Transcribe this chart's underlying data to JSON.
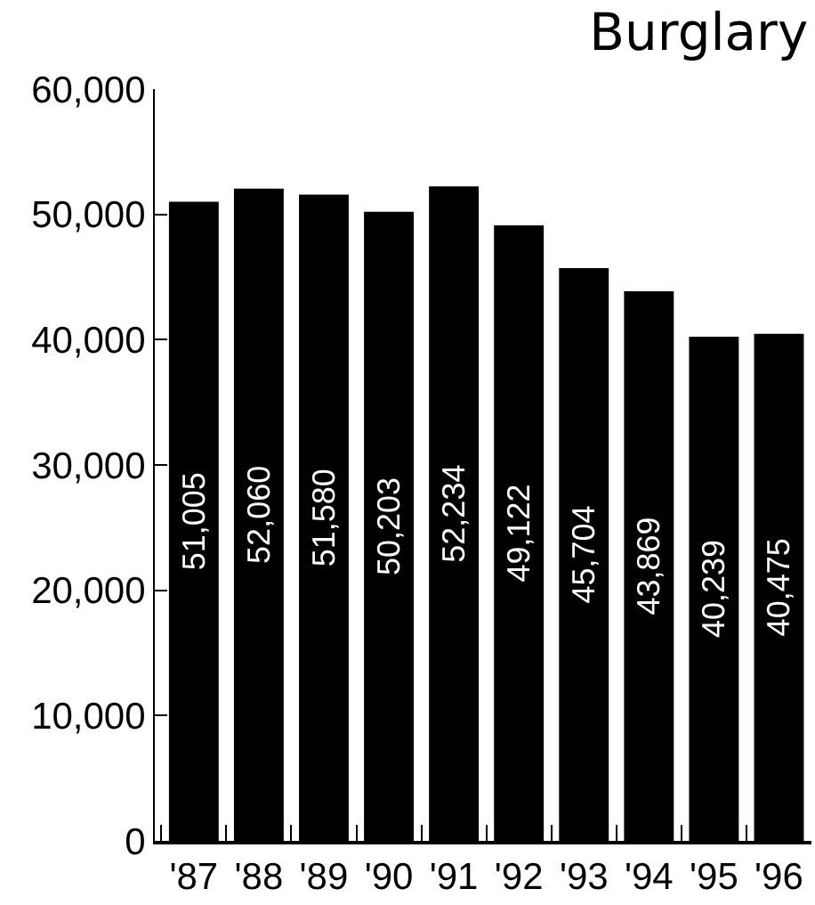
{
  "chart_data": {
    "type": "bar",
    "title": "Burglary",
    "categories": [
      "'87",
      "'88",
      "'89",
      "'90",
      "'91",
      "'92",
      "'93",
      "'94",
      "'95",
      "'96"
    ],
    "values": [
      51005,
      52060,
      51580,
      50203,
      52234,
      49122,
      45704,
      43869,
      40239,
      40475
    ],
    "value_labels": [
      "51,005",
      "52,060",
      "51,580",
      "50,203",
      "52,234",
      "49,122",
      "45,704",
      "43,869",
      "40,239",
      "40,475"
    ],
    "color": "#000000",
    "ylim": [
      0,
      60000
    ],
    "yticks": [
      0,
      {
        "value": 10000,
        "label": "10,000"
      },
      {
        "value": 20000,
        "label": "20,000"
      },
      {
        "value": 30000,
        "label": "30,000"
      },
      {
        "value": 40000,
        "label": "40,000"
      },
      {
        "value": 50000,
        "label": "50,000"
      },
      {
        "value": 60000,
        "label": "60,000"
      }
    ]
  }
}
